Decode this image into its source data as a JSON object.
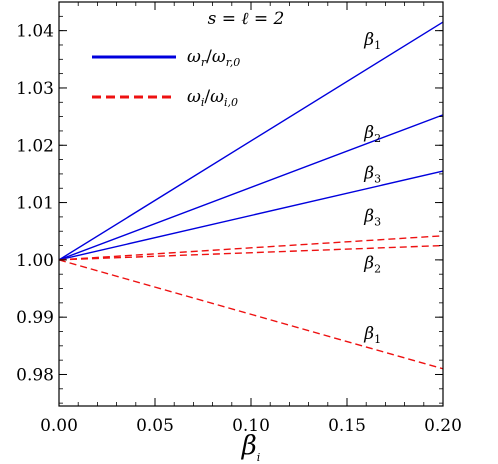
{
  "chart_data": {
    "type": "line",
    "title": "s = ℓ = 2",
    "xlabel": "β",
    "xlabel_sub": "i",
    "ylabel": "",
    "xlim": [
      0.0,
      0.2
    ],
    "ylim": [
      0.9745,
      1.045
    ],
    "x_ticks": [
      0.0,
      0.05,
      0.1,
      0.15,
      0.2
    ],
    "x_tick_labels": [
      "0.00",
      "0.05",
      "0.10",
      "0.15",
      "0.20"
    ],
    "y_ticks": [
      0.98,
      0.99,
      1.0,
      1.01,
      1.02,
      1.03,
      1.04
    ],
    "y_tick_labels": [
      "0.98",
      "0.99",
      "1.00",
      "1.01",
      "1.02",
      "1.03",
      "1.04"
    ],
    "grid": false,
    "legend": {
      "placement": "top-left",
      "entries": [
        {
          "base": "ω",
          "num_sub": "r",
          "den_sub": "r,0",
          "color": "#0000dd",
          "dash": "solid"
        },
        {
          "base": "ω",
          "num_sub": "i",
          "den_sub": "i,0",
          "color": "#ee1111",
          "dash": "dashed"
        }
      ]
    },
    "series": [
      {
        "group": "real",
        "label": "β",
        "label_sub": "1",
        "color": "#0000dd",
        "dash": "solid",
        "x": [
          0.0,
          0.2
        ],
        "y": [
          1.0,
          1.0415
        ],
        "label_at": [
          0.159,
          1.0375
        ]
      },
      {
        "group": "real",
        "label": "β",
        "label_sub": "2",
        "color": "#0000dd",
        "dash": "solid",
        "x": [
          0.0,
          0.2
        ],
        "y": [
          1.0,
          1.0253
        ],
        "label_at": [
          0.159,
          1.0213
        ]
      },
      {
        "group": "real",
        "label": "β",
        "label_sub": "3",
        "color": "#0000dd",
        "dash": "solid",
        "x": [
          0.0,
          0.2
        ],
        "y": [
          1.0,
          1.0155
        ],
        "label_at": [
          0.159,
          1.0142
        ]
      },
      {
        "group": "imag",
        "label": "β",
        "label_sub": "3",
        "color": "#ee1111",
        "dash": "dashed",
        "x": [
          0.0,
          0.2
        ],
        "y": [
          1.0,
          1.0042
        ],
        "label_at": [
          0.159,
          1.0067
        ]
      },
      {
        "group": "imag",
        "label": "β",
        "label_sub": "2",
        "color": "#ee1111",
        "dash": "dashed",
        "x": [
          0.0,
          0.2
        ],
        "y": [
          1.0,
          1.0025
        ],
        "label_at": [
          0.159,
          0.9985
        ]
      },
      {
        "group": "imag",
        "label": "β",
        "label_sub": "1",
        "color": "#ee1111",
        "dash": "dashed",
        "x": [
          0.0,
          0.2
        ],
        "y": [
          1.0,
          0.981
        ],
        "label_at": [
          0.159,
          0.9862
        ]
      }
    ]
  }
}
